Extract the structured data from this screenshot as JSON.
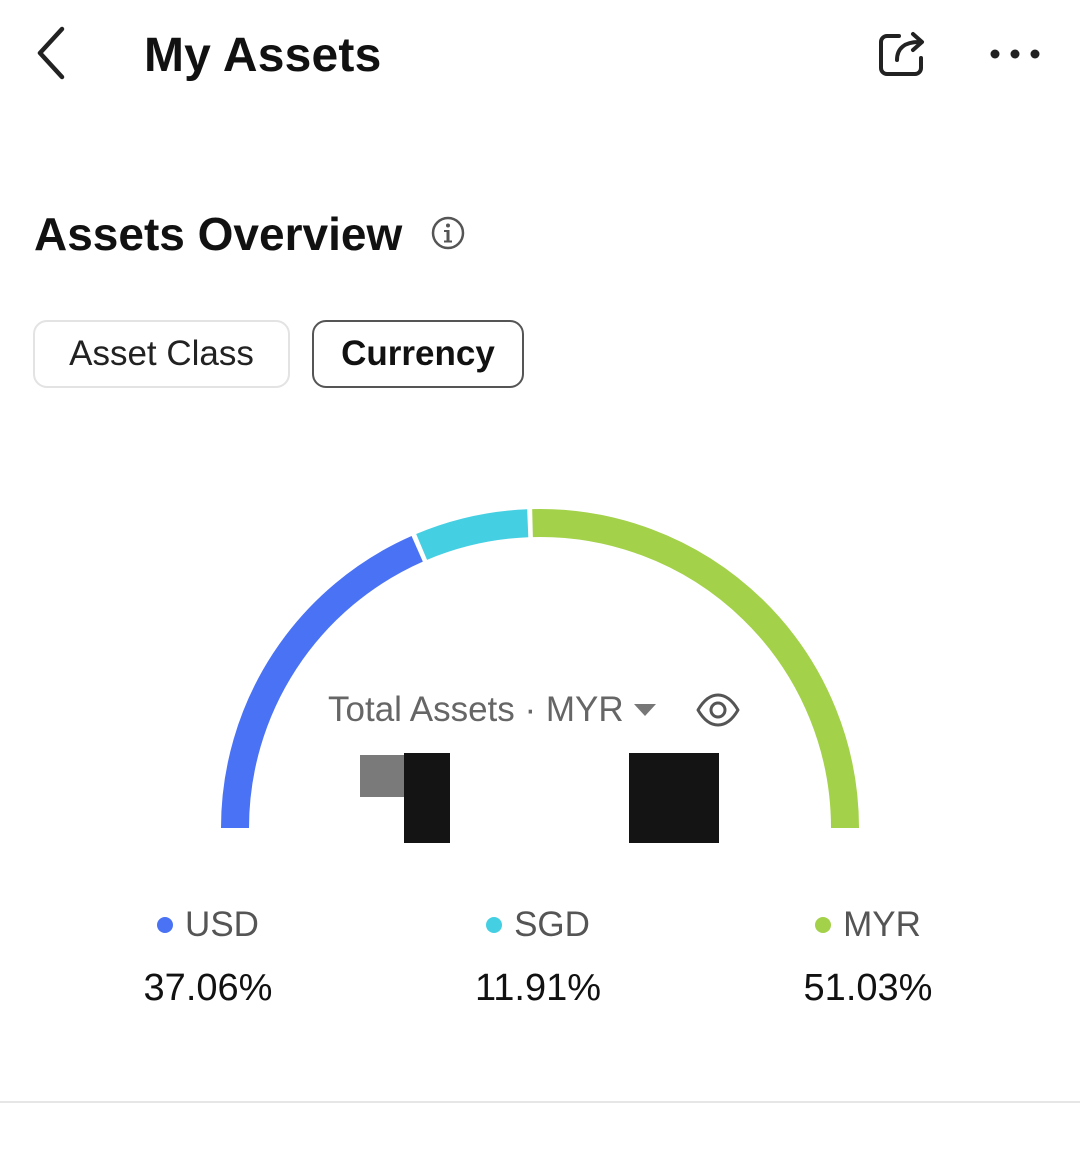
{
  "header": {
    "title": "My Assets",
    "back_icon": "chevron-left-icon",
    "share_icon": "share-icon",
    "more_icon": "more-icon"
  },
  "overview": {
    "title": "Assets Overview",
    "info_icon": "info-icon",
    "tabs": [
      {
        "label": "Asset Class",
        "selected": false
      },
      {
        "label": "Currency",
        "selected": true
      }
    ],
    "total_label": "Total Assets · MYR",
    "visibility_icon": "eye-icon"
  },
  "colors": {
    "USD": "#4a72f5",
    "SGD": "#45cfe3",
    "MYR": "#a3d14a"
  },
  "chart_data": {
    "type": "pie",
    "categories": [
      "USD",
      "SGD",
      "MYR"
    ],
    "values": [
      37.06,
      11.91,
      51.03
    ],
    "value_labels": [
      "37.06%",
      "11.91%",
      "51.03%"
    ],
    "colors": [
      "#4a72f5",
      "#45cfe3",
      "#a3d14a"
    ]
  }
}
